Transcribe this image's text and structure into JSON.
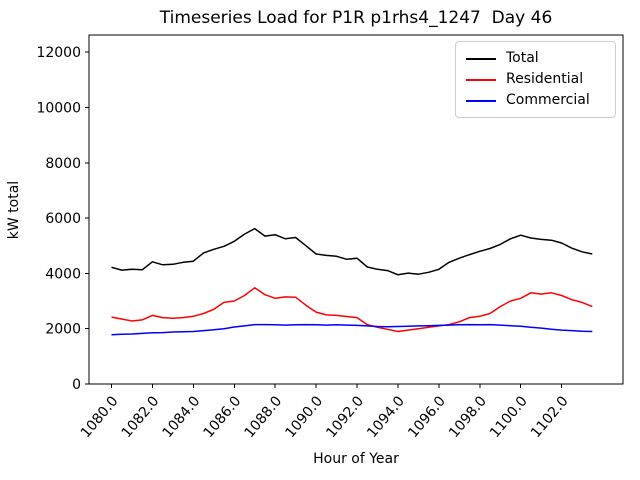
{
  "chart_data": {
    "type": "line",
    "title": "Timeseries Load for P1R p1rhs4_1247  Day 46",
    "xlabel": "Hour of Year",
    "ylabel": "kW total",
    "grid": false,
    "legend_position": "upper right",
    "xlim": [
      1078.9,
      1105.0
    ],
    "ylim": [
      0,
      12622
    ],
    "xticks": [
      1080,
      1082,
      1084,
      1086,
      1088,
      1090,
      1092,
      1094,
      1096,
      1098,
      1100,
      1102
    ],
    "xtick_labels": [
      "1080.0",
      "1082.0",
      "1084.0",
      "1086.0",
      "1088.0",
      "1090.0",
      "1092.0",
      "1094.0",
      "1096.0",
      "1098.0",
      "1100.0",
      "1102.0"
    ],
    "xtick_rotation": 50,
    "yticks": [
      0,
      2000,
      4000,
      6000,
      8000,
      10000,
      12000
    ],
    "x": [
      1080.0,
      1080.5,
      1081.0,
      1081.5,
      1082.0,
      1082.5,
      1083.0,
      1083.5,
      1084.0,
      1084.5,
      1085.0,
      1085.5,
      1086.0,
      1086.5,
      1087.0,
      1087.5,
      1088.0,
      1088.5,
      1089.0,
      1089.5,
      1090.0,
      1090.5,
      1091.0,
      1091.5,
      1092.0,
      1092.5,
      1093.0,
      1093.5,
      1094.0,
      1094.5,
      1095.0,
      1095.5,
      1096.0,
      1096.5,
      1097.0,
      1097.5,
      1098.0,
      1098.5,
      1099.0,
      1099.5,
      1100.0,
      1100.5,
      1101.0,
      1101.5,
      1102.0,
      1102.5,
      1103.0,
      1103.5
    ],
    "series": [
      {
        "name": "Total",
        "color": "#000000",
        "values": [
          4220,
          4120,
          4150,
          4130,
          4420,
          4310,
          4330,
          4400,
          4440,
          4740,
          4870,
          4980,
          5160,
          5420,
          5620,
          5350,
          5400,
          5250,
          5300,
          5000,
          4700,
          4650,
          4620,
          4510,
          4550,
          4230,
          4150,
          4100,
          3950,
          4010,
          3970,
          4040,
          4150,
          4400,
          4550,
          4680,
          4800,
          4900,
          5050,
          5250,
          5380,
          5280,
          5230,
          5200,
          5100,
          4910,
          4780,
          4700
        ]
      },
      {
        "name": "Residential",
        "color": "#ff0000",
        "values": [
          2420,
          2350,
          2280,
          2320,
          2480,
          2400,
          2380,
          2400,
          2450,
          2550,
          2700,
          2950,
          3000,
          3200,
          3480,
          3230,
          3100,
          3150,
          3140,
          2850,
          2600,
          2500,
          2480,
          2440,
          2400,
          2150,
          2050,
          1980,
          1900,
          1950,
          2000,
          2050,
          2100,
          2150,
          2250,
          2400,
          2450,
          2550,
          2800,
          3000,
          3100,
          3300,
          3250,
          3300,
          3200,
          3050,
          2950,
          2800
        ]
      },
      {
        "name": "Commercial",
        "color": "#0000ff",
        "values": [
          1780,
          1800,
          1810,
          1830,
          1850,
          1860,
          1880,
          1890,
          1900,
          1930,
          1960,
          2000,
          2060,
          2100,
          2150,
          2150,
          2140,
          2130,
          2140,
          2150,
          2140,
          2130,
          2140,
          2130,
          2120,
          2100,
          2080,
          2070,
          2080,
          2090,
          2100,
          2110,
          2120,
          2130,
          2140,
          2150,
          2140,
          2150,
          2130,
          2110,
          2090,
          2050,
          2020,
          1980,
          1950,
          1930,
          1910,
          1900
        ]
      }
    ]
  }
}
